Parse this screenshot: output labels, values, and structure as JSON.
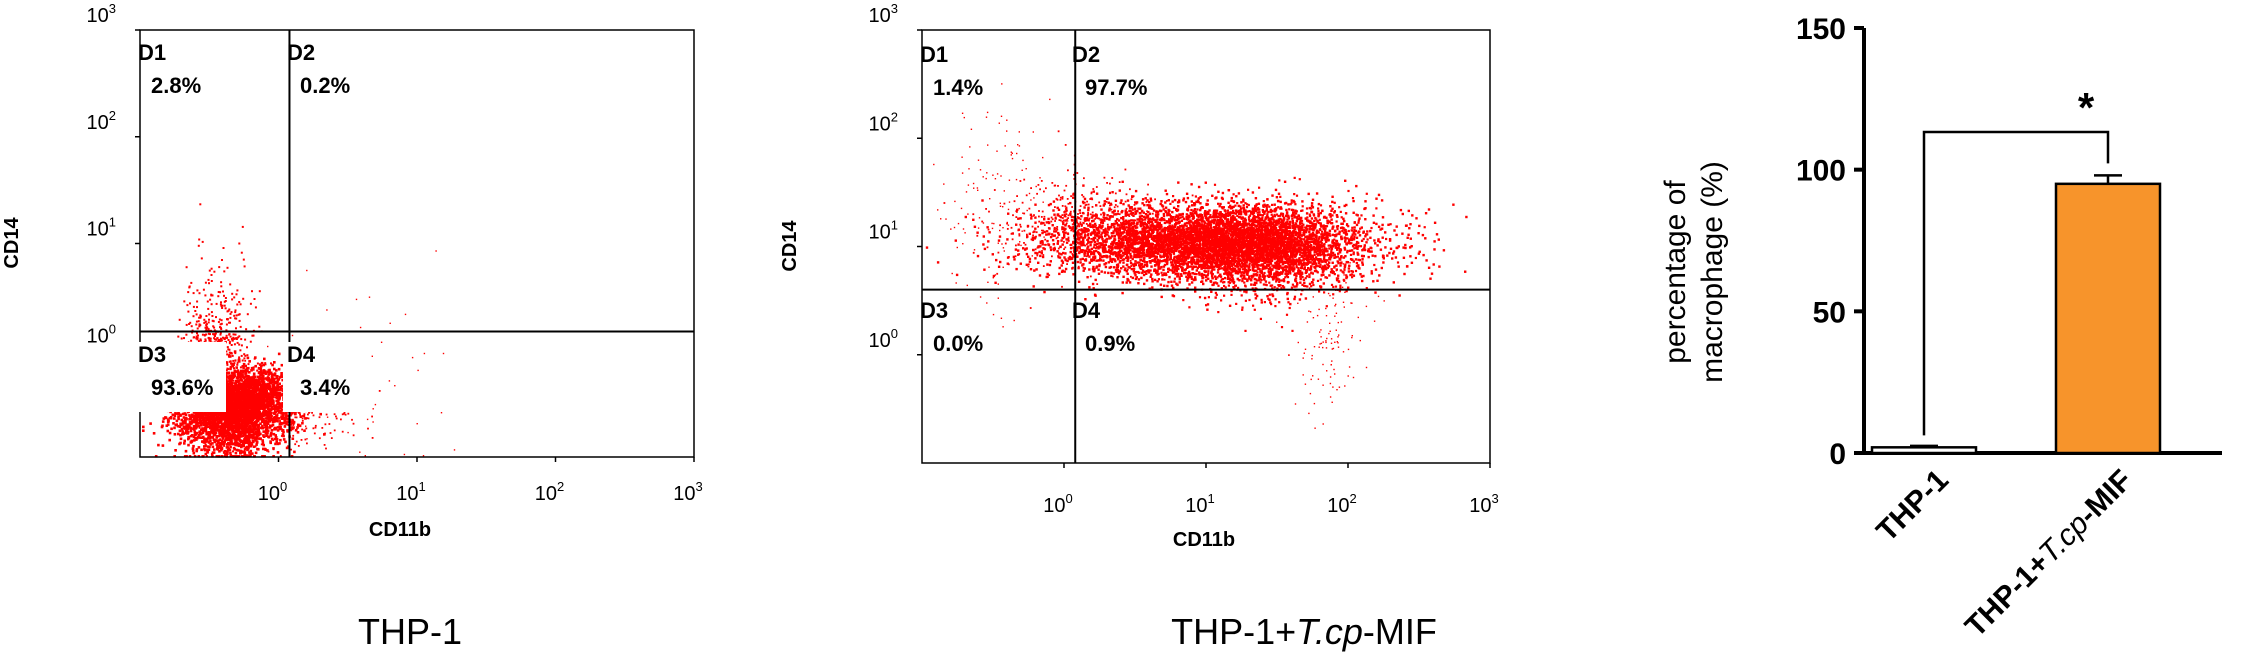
{
  "chart_data": [
    {
      "type": "scatter",
      "name": "thp1",
      "caption": "THP-1",
      "xlabel": "CD11b",
      "ylabel": "CD14",
      "xscale": "log",
      "yscale": "log",
      "xlim_exp": [
        -1,
        3
      ],
      "ylim_exp": [
        -1,
        3
      ],
      "x_ticks": [
        {
          "base": "10",
          "exp": "0"
        },
        {
          "base": "10",
          "exp": "1"
        },
        {
          "base": "10",
          "exp": "2"
        },
        {
          "base": "10",
          "exp": "3"
        }
      ],
      "y_ticks": [
        {
          "base": "10",
          "exp": "0"
        },
        {
          "base": "10",
          "exp": "1"
        },
        {
          "base": "10",
          "exp": "2"
        },
        {
          "base": "10",
          "exp": "3"
        }
      ],
      "gate": {
        "x": 1.2,
        "y": 1.5
      },
      "quadrants": [
        {
          "id": "D1",
          "percent": "2.8%"
        },
        {
          "id": "D2",
          "percent": "0.2%"
        },
        {
          "id": "D3",
          "percent": "93.6%"
        },
        {
          "id": "D4",
          "percent": "3.4%"
        }
      ],
      "point_color": "#ff0000"
    },
    {
      "type": "scatter",
      "name": "thp1_mif",
      "caption": "THP-1+T.cp-MIF",
      "caption_parts": {
        "prefix": "THP-1+",
        "italic": "T.cp",
        "suffix": "-MIF"
      },
      "xlabel": "CD11b",
      "ylabel": "CD14",
      "xscale": "log",
      "yscale": "log",
      "xlim_exp": [
        -1,
        3
      ],
      "ylim_exp": [
        -1,
        3
      ],
      "x_ticks": [
        {
          "base": "10",
          "exp": "0"
        },
        {
          "base": "10",
          "exp": "1"
        },
        {
          "base": "10",
          "exp": "2"
        },
        {
          "base": "10",
          "exp": "3"
        }
      ],
      "y_ticks": [
        {
          "base": "10",
          "exp": "0"
        },
        {
          "base": "10",
          "exp": "1"
        },
        {
          "base": "10",
          "exp": "2"
        },
        {
          "base": "10",
          "exp": "3"
        }
      ],
      "gate": {
        "x": 1.2,
        "y": 4.0
      },
      "quadrants": [
        {
          "id": "D1",
          "percent": "1.4%"
        },
        {
          "id": "D2",
          "percent": "97.7%"
        },
        {
          "id": "D3",
          "percent": "0.0%"
        },
        {
          "id": "D4",
          "percent": "0.9%"
        }
      ],
      "point_color": "#ff0000"
    },
    {
      "type": "bar",
      "name": "macrophage",
      "categories": [
        "THP-1",
        "THP-1+T.cp-MIF"
      ],
      "category_parts": [
        {
          "prefix": "THP-1",
          "italic": "",
          "suffix": ""
        },
        {
          "prefix": "THP-1+",
          "italic": "T.cp",
          "suffix": "-MIF"
        }
      ],
      "values": [
        2,
        95
      ],
      "errors": [
        0.5,
        3
      ],
      "colors": [
        "#ffffff",
        "#f7942b"
      ],
      "ylabel_lines": [
        "percentage of",
        "macrophage (%)"
      ],
      "ylim": [
        0,
        150
      ],
      "yticks": [
        "0",
        "50",
        "100",
        "150"
      ],
      "significance": "*"
    }
  ]
}
